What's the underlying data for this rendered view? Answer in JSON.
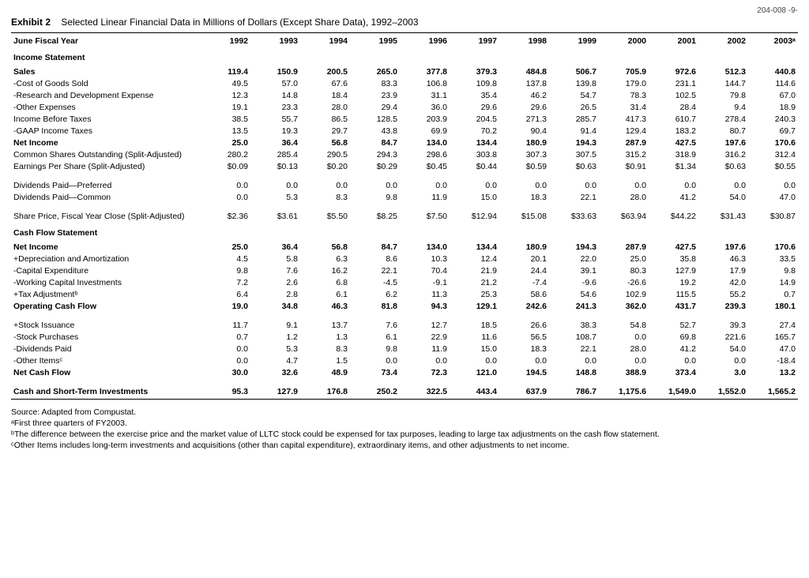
{
  "page_code": "204-008   -9-",
  "exhibit_label": "Exhibit 2",
  "exhibit_title": "Selected Linear Financial Data in Millions of Dollars (Except Share Data), 1992–2003",
  "header_label": "June Fiscal Year",
  "years": [
    "1992",
    "1993",
    "1994",
    "1995",
    "1996",
    "1997",
    "1998",
    "1999",
    "2000",
    "2001",
    "2002",
    "2003ᵃ"
  ],
  "sections": {
    "income_statement": "Income Statement",
    "cash_flow_statement": "Cash Flow Statement"
  },
  "rows": [
    {
      "type": "section",
      "label": "Income Statement"
    },
    {
      "type": "data",
      "bold": true,
      "label": "Sales",
      "v": [
        "119.4",
        "150.9",
        "200.5",
        "265.0",
        "377.8",
        "379.3",
        "484.8",
        "506.7",
        "705.9",
        "972.6",
        "512.3",
        "440.8"
      ]
    },
    {
      "type": "data",
      "label": "-Cost of Goods Sold",
      "v": [
        "49.5",
        "57.0",
        "67.6",
        "83.3",
        "106.8",
        "109.8",
        "137.8",
        "139.8",
        "179.0",
        "231.1",
        "144.7",
        "114.6"
      ]
    },
    {
      "type": "data",
      "label": "-Research and Development Expense",
      "v": [
        "12.3",
        "14.8",
        "18.4",
        "23.9",
        "31.1",
        "35.4",
        "46.2",
        "54.7",
        "78.3",
        "102.5",
        "79.8",
        "67.0"
      ]
    },
    {
      "type": "data",
      "label": "-Other Expenses",
      "v": [
        "19.1",
        "23.3",
        "28.0",
        "29.4",
        "36.0",
        "29.6",
        "29.6",
        "26.5",
        "31.4",
        "28.4",
        "9.4",
        "18.9"
      ]
    },
    {
      "type": "data",
      "label": "Income Before Taxes",
      "v": [
        "38.5",
        "55.7",
        "86.5",
        "128.5",
        "203.9",
        "204.5",
        "271.3",
        "285.7",
        "417.3",
        "610.7",
        "278.4",
        "240.3"
      ]
    },
    {
      "type": "data",
      "label": "-GAAP Income Taxes",
      "v": [
        "13.5",
        "19.3",
        "29.7",
        "43.8",
        "69.9",
        "70.2",
        "90.4",
        "91.4",
        "129.4",
        "183.2",
        "80.7",
        "69.7"
      ]
    },
    {
      "type": "data",
      "bold": true,
      "label": "Net Income",
      "v": [
        "25.0",
        "36.4",
        "56.8",
        "84.7",
        "134.0",
        "134.4",
        "180.9",
        "194.3",
        "287.9",
        "427.5",
        "197.6",
        "170.6"
      ]
    },
    {
      "type": "data",
      "label": "Common Shares Outstanding (Split-Adjusted)",
      "v": [
        "280.2",
        "285.4",
        "290.5",
        "294.3",
        "298.6",
        "303.8",
        "307.3",
        "307.5",
        "315.2",
        "318.9",
        "316.2",
        "312.4"
      ]
    },
    {
      "type": "data",
      "label": "Earnings Per Share (Split-Adjusted)",
      "v": [
        "$0.09",
        "$0.13",
        "$0.20",
        "$0.29",
        "$0.45",
        "$0.44",
        "$0.59",
        "$0.63",
        "$0.91",
        "$1.34",
        "$0.63",
        "$0.55"
      ]
    },
    {
      "type": "spacer"
    },
    {
      "type": "data",
      "label": "Dividends Paid—Preferred",
      "v": [
        "0.0",
        "0.0",
        "0.0",
        "0.0",
        "0.0",
        "0.0",
        "0.0",
        "0.0",
        "0.0",
        "0.0",
        "0.0",
        "0.0"
      ]
    },
    {
      "type": "data",
      "label": "Dividends Paid—Common",
      "v": [
        "0.0",
        "5.3",
        "8.3",
        "9.8",
        "11.9",
        "15.0",
        "18.3",
        "22.1",
        "28.0",
        "41.2",
        "54.0",
        "47.0"
      ]
    },
    {
      "type": "spacer"
    },
    {
      "type": "data",
      "label": "Share Price, Fiscal Year Close (Split-Adjusted)",
      "v": [
        "$2.36",
        "$3.61",
        "$5.50",
        "$8.25",
        "$7.50",
        "$12.94",
        "$15.08",
        "$33.63",
        "$63.94",
        "$44.22",
        "$31.43",
        "$30.87"
      ]
    },
    {
      "type": "section",
      "label": "Cash Flow Statement"
    },
    {
      "type": "data",
      "bold": true,
      "label": "Net Income",
      "v": [
        "25.0",
        "36.4",
        "56.8",
        "84.7",
        "134.0",
        "134.4",
        "180.9",
        "194.3",
        "287.9",
        "427.5",
        "197.6",
        "170.6"
      ]
    },
    {
      "type": "data",
      "label": "+Depreciation and Amortization",
      "v": [
        "4.5",
        "5.8",
        "6.3",
        "8.6",
        "10.3",
        "12.4",
        "20.1",
        "22.0",
        "25.0",
        "35.8",
        "46.3",
        "33.5"
      ]
    },
    {
      "type": "data",
      "label": "-Capital Expenditure",
      "v": [
        "9.8",
        "7.6",
        "16.2",
        "22.1",
        "70.4",
        "21.9",
        "24.4",
        "39.1",
        "80.3",
        "127.9",
        "17.9",
        "9.8"
      ]
    },
    {
      "type": "data",
      "label": "-Working Capital Investments",
      "v": [
        "7.2",
        "2.6",
        "6.8",
        "-4.5",
        "-9.1",
        "21.2",
        "-7.4",
        "-9.6",
        "-26.6",
        "19.2",
        "42.0",
        "14.9"
      ]
    },
    {
      "type": "data",
      "label": "+Tax Adjustmentᵇ",
      "v": [
        "6.4",
        "2.8",
        "6.1",
        "6.2",
        "11.3",
        "25.3",
        "58.6",
        "54.6",
        "102.9",
        "115.5",
        "55.2",
        "0.7"
      ]
    },
    {
      "type": "data",
      "bold": true,
      "label": "Operating Cash Flow",
      "v": [
        "19.0",
        "34.8",
        "46.3",
        "81.8",
        "94.3",
        "129.1",
        "242.6",
        "241.3",
        "362.0",
        "431.7",
        "239.3",
        "180.1"
      ]
    },
    {
      "type": "spacer"
    },
    {
      "type": "data",
      "label": "+Stock Issuance",
      "v": [
        "11.7",
        "9.1",
        "13.7",
        "7.6",
        "12.7",
        "18.5",
        "26.6",
        "38.3",
        "54.8",
        "52.7",
        "39.3",
        "27.4"
      ]
    },
    {
      "type": "data",
      "label": "-Stock Purchases",
      "v": [
        "0.7",
        "1.2",
        "1.3",
        "6.1",
        "22.9",
        "11.6",
        "56.5",
        "108.7",
        "0.0",
        "69.8",
        "221.6",
        "165.7"
      ]
    },
    {
      "type": "data",
      "label": "-Dividends Paid",
      "v": [
        "0.0",
        "5.3",
        "8.3",
        "9.8",
        "11.9",
        "15.0",
        "18.3",
        "22.1",
        "28.0",
        "41.2",
        "54.0",
        "47.0"
      ]
    },
    {
      "type": "data",
      "label": "-Other Itemsᶜ",
      "v": [
        "0.0",
        "4.7",
        "1.5",
        "0.0",
        "0.0",
        "0.0",
        "0.0",
        "0.0",
        "0.0",
        "0.0",
        "0.0",
        "-18.4"
      ]
    },
    {
      "type": "data",
      "bold": true,
      "label": "Net Cash Flow",
      "v": [
        "30.0",
        "32.6",
        "48.9",
        "73.4",
        "72.3",
        "121.0",
        "194.5",
        "148.8",
        "388.9",
        "373.4",
        "3.0",
        "13.2"
      ]
    },
    {
      "type": "spacer"
    },
    {
      "type": "data",
      "bold": true,
      "label": "Cash and Short-Term Investments",
      "v": [
        "95.3",
        "127.9",
        "176.8",
        "250.2",
        "322.5",
        "443.4",
        "637.9",
        "786.7",
        "1,175.6",
        "1,549.0",
        "1,552.0",
        "1,565.2"
      ]
    }
  ],
  "source": "Source:    Adapted from Compustat.",
  "footnotes": [
    "ᵃFirst three quarters of FY2003.",
    "ᵇThe difference between the exercise price and the market value of LLTC stock could be expensed for tax purposes, leading to large tax adjustments on the cash flow statement.",
    "ᶜOther Items includes long-term investments and acquisitions (other than capital expenditure), extraordinary items, and other adjustments to net income."
  ]
}
